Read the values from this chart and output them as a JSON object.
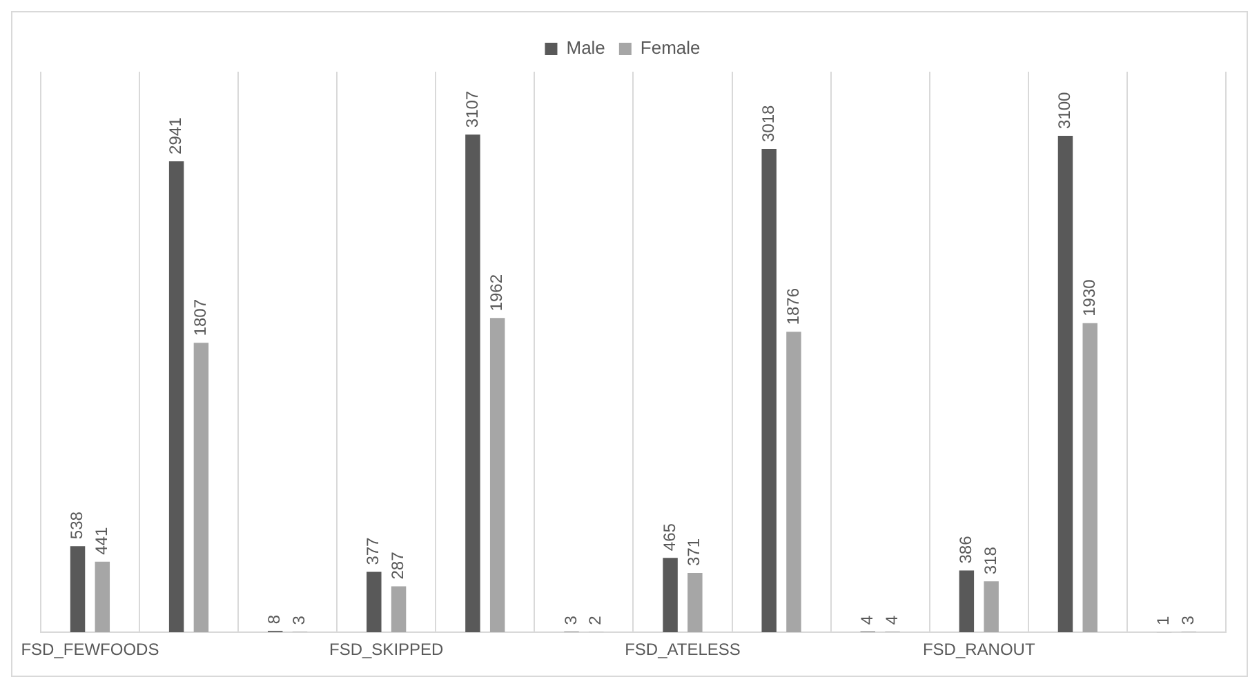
{
  "chart_data": {
    "type": "bar",
    "categories": [
      "FSD_FEWFOODS",
      null,
      null,
      "FSD_SKIPPED",
      null,
      null,
      "FSD_ATELESS",
      null,
      null,
      "FSD_RANOUT",
      null,
      null
    ],
    "series": [
      {
        "name": "Male",
        "color": "#595959",
        "values": [
          538,
          2941,
          8,
          377,
          3107,
          3,
          465,
          3018,
          4,
          386,
          3100,
          1
        ]
      },
      {
        "name": "Female",
        "color": "#a6a6a6",
        "values": [
          441,
          1807,
          3,
          287,
          1962,
          2,
          371,
          1876,
          4,
          318,
          1930,
          3
        ]
      }
    ],
    "data_labels": true,
    "legend": "top",
    "grid": "x"
  }
}
